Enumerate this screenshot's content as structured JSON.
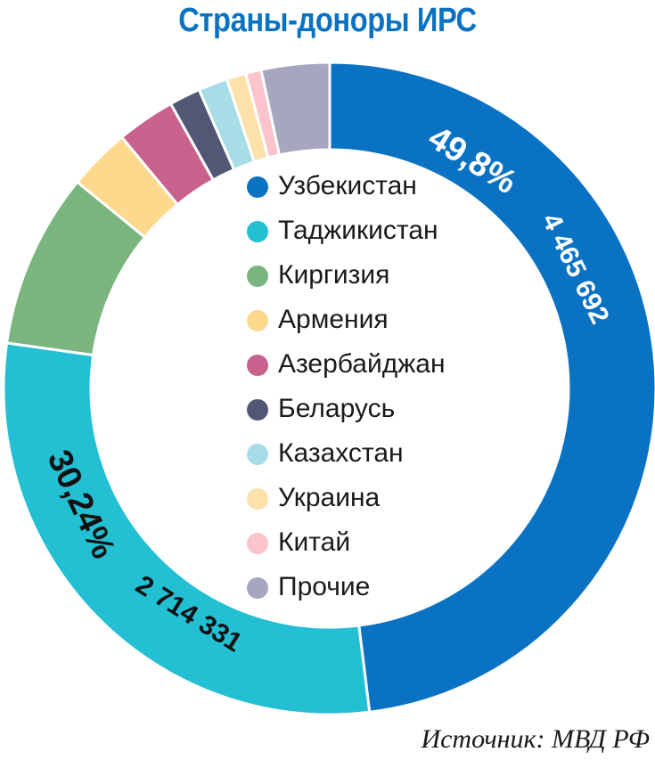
{
  "chart_data": {
    "type": "pie",
    "title": "Страны-доноры ИРС",
    "categories": [
      "Узбекистан",
      "Таджикистан",
      "Киргизия",
      "Армения",
      "Азербайджан",
      "Беларусь",
      "Казахстан",
      "Украина",
      "Китай",
      "Прочие"
    ],
    "values": [
      49.8,
      30.24,
      9.0,
      3.2,
      3.0,
      1.6,
      1.5,
      1.0,
      0.8,
      3.5
    ],
    "colors": [
      "#0a72c2",
      "#23bfd3",
      "#7ab57f",
      "#fdd98e",
      "#c8628c",
      "#535776",
      "#a6dde7",
      "#fde1a9",
      "#fbc4cc",
      "#a7a6bf"
    ],
    "data_labels": [
      {
        "category": "Узбекистан",
        "percent": "49,8%",
        "count": "4 465 692"
      },
      {
        "category": "Таджикистан",
        "percent": "30,24%",
        "count": "2 714 331"
      }
    ],
    "legend_placement": "center"
  },
  "source": "Источник: МВД РФ",
  "theme": {
    "title_color": "#0a72c2"
  }
}
